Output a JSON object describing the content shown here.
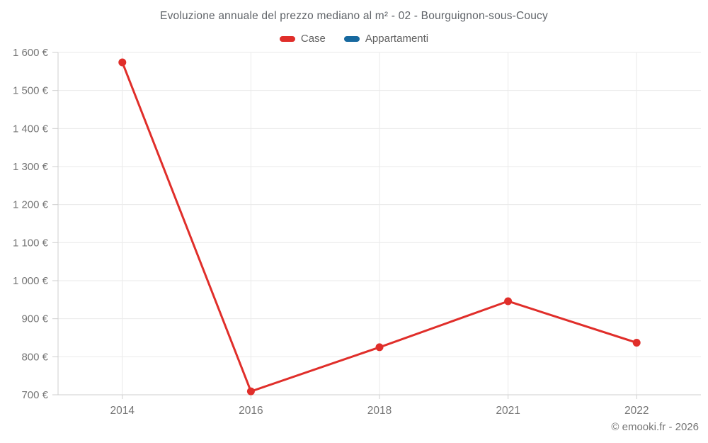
{
  "title": "Evoluzione annuale del prezzo mediano al m² - 02 - Bourguignon-sous-Coucy",
  "legend": {
    "items": [
      {
        "label": "Case",
        "color": "#e02e2a"
      },
      {
        "label": "Appartamenti",
        "color": "#17699f"
      }
    ]
  },
  "copyright": "© emooki.fr - 2026",
  "chart_data": {
    "type": "line",
    "title": "Evoluzione annuale del prezzo mediano al m² - 02 - Bourguignon-sous-Coucy",
    "categories": [
      "2014",
      "2016",
      "2018",
      "2021",
      "2022"
    ],
    "series": [
      {
        "name": "Case",
        "color": "#e02e2a",
        "values": [
          1574,
          709,
          825,
          946,
          837
        ]
      },
      {
        "name": "Appartamenti",
        "color": "#17699f",
        "values": []
      }
    ],
    "xlabel": "",
    "ylabel": "",
    "ylim": [
      700,
      1600
    ],
    "ytick_step": 100,
    "yticks": [
      {
        "value": 700,
        "label": "700 €"
      },
      {
        "value": 800,
        "label": "800 €"
      },
      {
        "value": 900,
        "label": "900 €"
      },
      {
        "value": 1000,
        "label": "1 000 €"
      },
      {
        "value": 1100,
        "label": "1 100 €"
      },
      {
        "value": 1200,
        "label": "1 200 €"
      },
      {
        "value": 1300,
        "label": "1 300 €"
      },
      {
        "value": 1400,
        "label": "1 400 €"
      },
      {
        "value": 1500,
        "label": "1 500 €"
      },
      {
        "value": 1600,
        "label": "1 600 €"
      }
    ],
    "grid": true,
    "legend_position": "top",
    "colors": {
      "grid": "#eaeaea",
      "axis": "#cfcfcf",
      "tick_text": "#757575",
      "title_text": "#5f6368"
    }
  }
}
